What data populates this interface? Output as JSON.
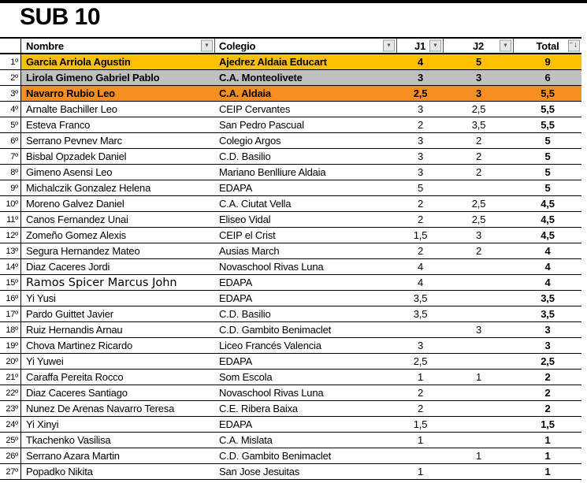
{
  "title": "SUB 10",
  "colors": {
    "gold": "#FFC000",
    "silver": "#C0C0C0",
    "bronze": "#F78F20"
  },
  "table": {
    "columns": [
      {
        "key": "name",
        "label": "Nombre",
        "filter_icon": "filter-dropdown-icon"
      },
      {
        "key": "school",
        "label": "Colegio",
        "filter_icon": "filter-dropdown-icon"
      },
      {
        "key": "j1",
        "label": "J1",
        "filter_icon": "filter-dropdown-icon"
      },
      {
        "key": "j2",
        "label": "J2",
        "filter_icon": "filter-dropdown-icon"
      },
      {
        "key": "total",
        "label": "Total",
        "filter_icon": "sort-descending-icon"
      }
    ],
    "filter_dropdown_glyph": "▼",
    "sort_glyph": "↓",
    "rows": [
      {
        "rank": "1º",
        "name": "Garcia Arriola Agustin",
        "school": "Ajedrez Aldaia Educart",
        "j1": "4",
        "j2": "5",
        "total": "9",
        "highlight": "gold"
      },
      {
        "rank": "2º",
        "name": "Lirola Gimeno Gabriel Pablo",
        "school": "C.A. Monteolivete",
        "j1": "3",
        "j2": "3",
        "total": "6",
        "highlight": "silver"
      },
      {
        "rank": "3º",
        "name": "Navarro Rubio Leo",
        "school": "C.A. Aldaia",
        "j1": "2,5",
        "j2": "3",
        "total": "5,5",
        "highlight": "bronze"
      },
      {
        "rank": "4º",
        "name": "Arnalte Bachiller Leo",
        "school": "CEIP Cervantes",
        "j1": "3",
        "j2": "2,5",
        "total": "5,5"
      },
      {
        "rank": "5º",
        "name": "Esteva Franco",
        "school": "San Pedro Pascual",
        "j1": "2",
        "j2": "3,5",
        "total": "5,5"
      },
      {
        "rank": "6º",
        "name": "Serrano Pevnev Marc",
        "school": "Colegio Argos",
        "j1": "3",
        "j2": "2",
        "total": "5"
      },
      {
        "rank": "7º",
        "name": "Bisbal Opzadek Daniel",
        "school": "C.D. Basilio",
        "j1": "3",
        "j2": "2",
        "total": "5"
      },
      {
        "rank": "8º",
        "name": "Gimeno Asensi Leo",
        "school": "Mariano Benlliure Aldaia",
        "j1": "3",
        "j2": "2",
        "total": "5"
      },
      {
        "rank": "9º",
        "name": "Michalczik Gonzalez Helena",
        "school": "EDAPA",
        "j1": "5",
        "j2": "",
        "total": "5"
      },
      {
        "rank": "10º",
        "name": "Moreno Galvez Daniel",
        "school": "C.A. Ciutat Vella",
        "j1": "2",
        "j2": "2,5",
        "total": "4,5"
      },
      {
        "rank": "11º",
        "name": "Canos Fernandez Unai",
        "school": "Eliseo Vidal",
        "j1": "2",
        "j2": "2,5",
        "total": "4,5"
      },
      {
        "rank": "12º",
        "name": "Zomeño Gomez Alexis",
        "school": "CEIP el Crist",
        "j1": "1,5",
        "j2": "3",
        "total": "4,5"
      },
      {
        "rank": "13º",
        "name": "Segura Hernandez Mateo",
        "school": "Ausias March",
        "j1": "2",
        "j2": "2",
        "total": "4"
      },
      {
        "rank": "14º",
        "name": "Diaz Caceres Jordi",
        "school": "Novaschool Rivas Luna",
        "j1": "4",
        "j2": "",
        "total": "4"
      },
      {
        "rank": "15º",
        "name": "Ramos Spicer Marcus John",
        "school": "EDAPA",
        "j1": "4",
        "j2": "",
        "total": "4",
        "alt_font": true
      },
      {
        "rank": "16º",
        "name": "Yi Yusi",
        "school": "EDAPA",
        "j1": "3,5",
        "j2": "",
        "total": "3,5"
      },
      {
        "rank": "17º",
        "name": "Pardo Guittet Javier",
        "school": "C.D. Basilio",
        "j1": "3,5",
        "j2": "",
        "total": "3,5"
      },
      {
        "rank": "18º",
        "name": "Ruiz Hernandis Arnau",
        "school": "C.D. Gambito Benimaclet",
        "j1": "",
        "j2": "3",
        "total": "3"
      },
      {
        "rank": "19º",
        "name": "Chova Martinez Ricardo",
        "school": "Liceo Francés Valencia",
        "j1": "3",
        "j2": "",
        "total": "3"
      },
      {
        "rank": "20º",
        "name": "Yi Yuwei",
        "school": "EDAPA",
        "j1": "2,5",
        "j2": "",
        "total": "2,5"
      },
      {
        "rank": "21º",
        "name": "Caraffa Pereita Rocco",
        "school": "Som Escola",
        "j1": "1",
        "j2": "1",
        "total": "2"
      },
      {
        "rank": "22º",
        "name": "Diaz Caceres Santiago",
        "school": "Novaschool Rivas Luna",
        "j1": "2",
        "j2": "",
        "total": "2"
      },
      {
        "rank": "23º",
        "name": "Nunez De Arenas Navarro Teresa",
        "school": "C.E. Ribera Baixa",
        "j1": "2",
        "j2": "",
        "total": "2"
      },
      {
        "rank": "24º",
        "name": "Yi Xinyi",
        "school": "EDAPA",
        "j1": "1,5",
        "j2": "",
        "total": "1,5"
      },
      {
        "rank": "25º",
        "name": "Tkachenko Vasilisa",
        "school": "C.A. Mislata",
        "j1": "1",
        "j2": "",
        "total": "1"
      },
      {
        "rank": "26º",
        "name": "Serrano Azara Martin",
        "school": "C.D. Gambito Benimaclet",
        "j1": "",
        "j2": "1",
        "total": "1"
      },
      {
        "rank": "27º",
        "name": "Popadko Nikita",
        "school": "San Jose Jesuitas",
        "j1": "1",
        "j2": "",
        "total": "1"
      }
    ]
  }
}
